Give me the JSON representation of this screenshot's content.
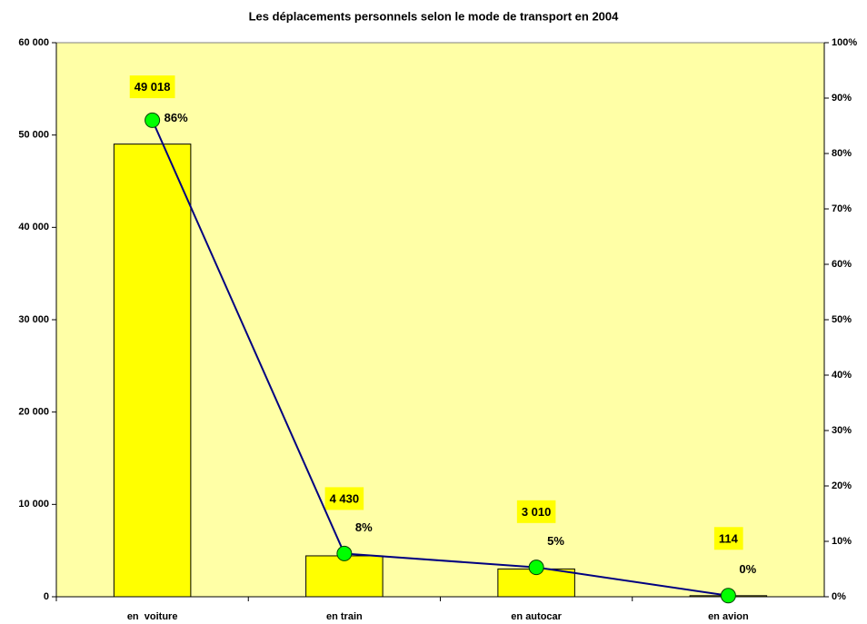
{
  "chart_data": {
    "type": "bar",
    "title": "Les déplacements personnels selon le mode de transport en 2004",
    "categories": [
      "en  voiture",
      "en train",
      "en autocar",
      "en avion"
    ],
    "series": [
      {
        "type": "bar",
        "color": "#ffff00",
        "values": [
          49018,
          4430,
          3010,
          114
        ],
        "value_labels": [
          "49 018",
          "4 430",
          "3 010",
          "114"
        ]
      },
      {
        "type": "line",
        "axis": "y2",
        "color": "#000080",
        "marker_color": "#00ff00",
        "values": [
          86,
          7.8,
          5.3,
          0.2
        ],
        "value_labels": [
          "86%",
          "8%",
          "5%",
          "0%"
        ]
      }
    ],
    "ylim": [
      0,
      60000
    ],
    "yticks": [
      0,
      {
        "value": 10000,
        "label": "10 000"
      },
      {
        "value": 20000,
        "label": "20 000"
      },
      {
        "value": 30000,
        "label": "30 000"
      },
      {
        "value": 40000,
        "label": "40 000"
      },
      {
        "value": 50000,
        "label": "50 000"
      },
      {
        "value": 60000,
        "label": "60 000"
      }
    ],
    "y2lim": [
      0,
      100
    ],
    "y2ticks": [
      {
        "value": 0,
        "label": "0%"
      },
      {
        "value": 10,
        "label": "10%"
      },
      {
        "value": 20,
        "label": "20%"
      },
      {
        "value": 30,
        "label": "30%"
      },
      {
        "value": 40,
        "label": "40%"
      },
      {
        "value": 50,
        "label": "50%"
      },
      {
        "value": 60,
        "label": "60%"
      },
      {
        "value": 70,
        "label": "70%"
      },
      {
        "value": 80,
        "label": "80%"
      },
      {
        "value": 90,
        "label": "90%"
      },
      {
        "value": 100,
        "label": "100%"
      }
    ],
    "plot_background": "#ffffa6"
  }
}
